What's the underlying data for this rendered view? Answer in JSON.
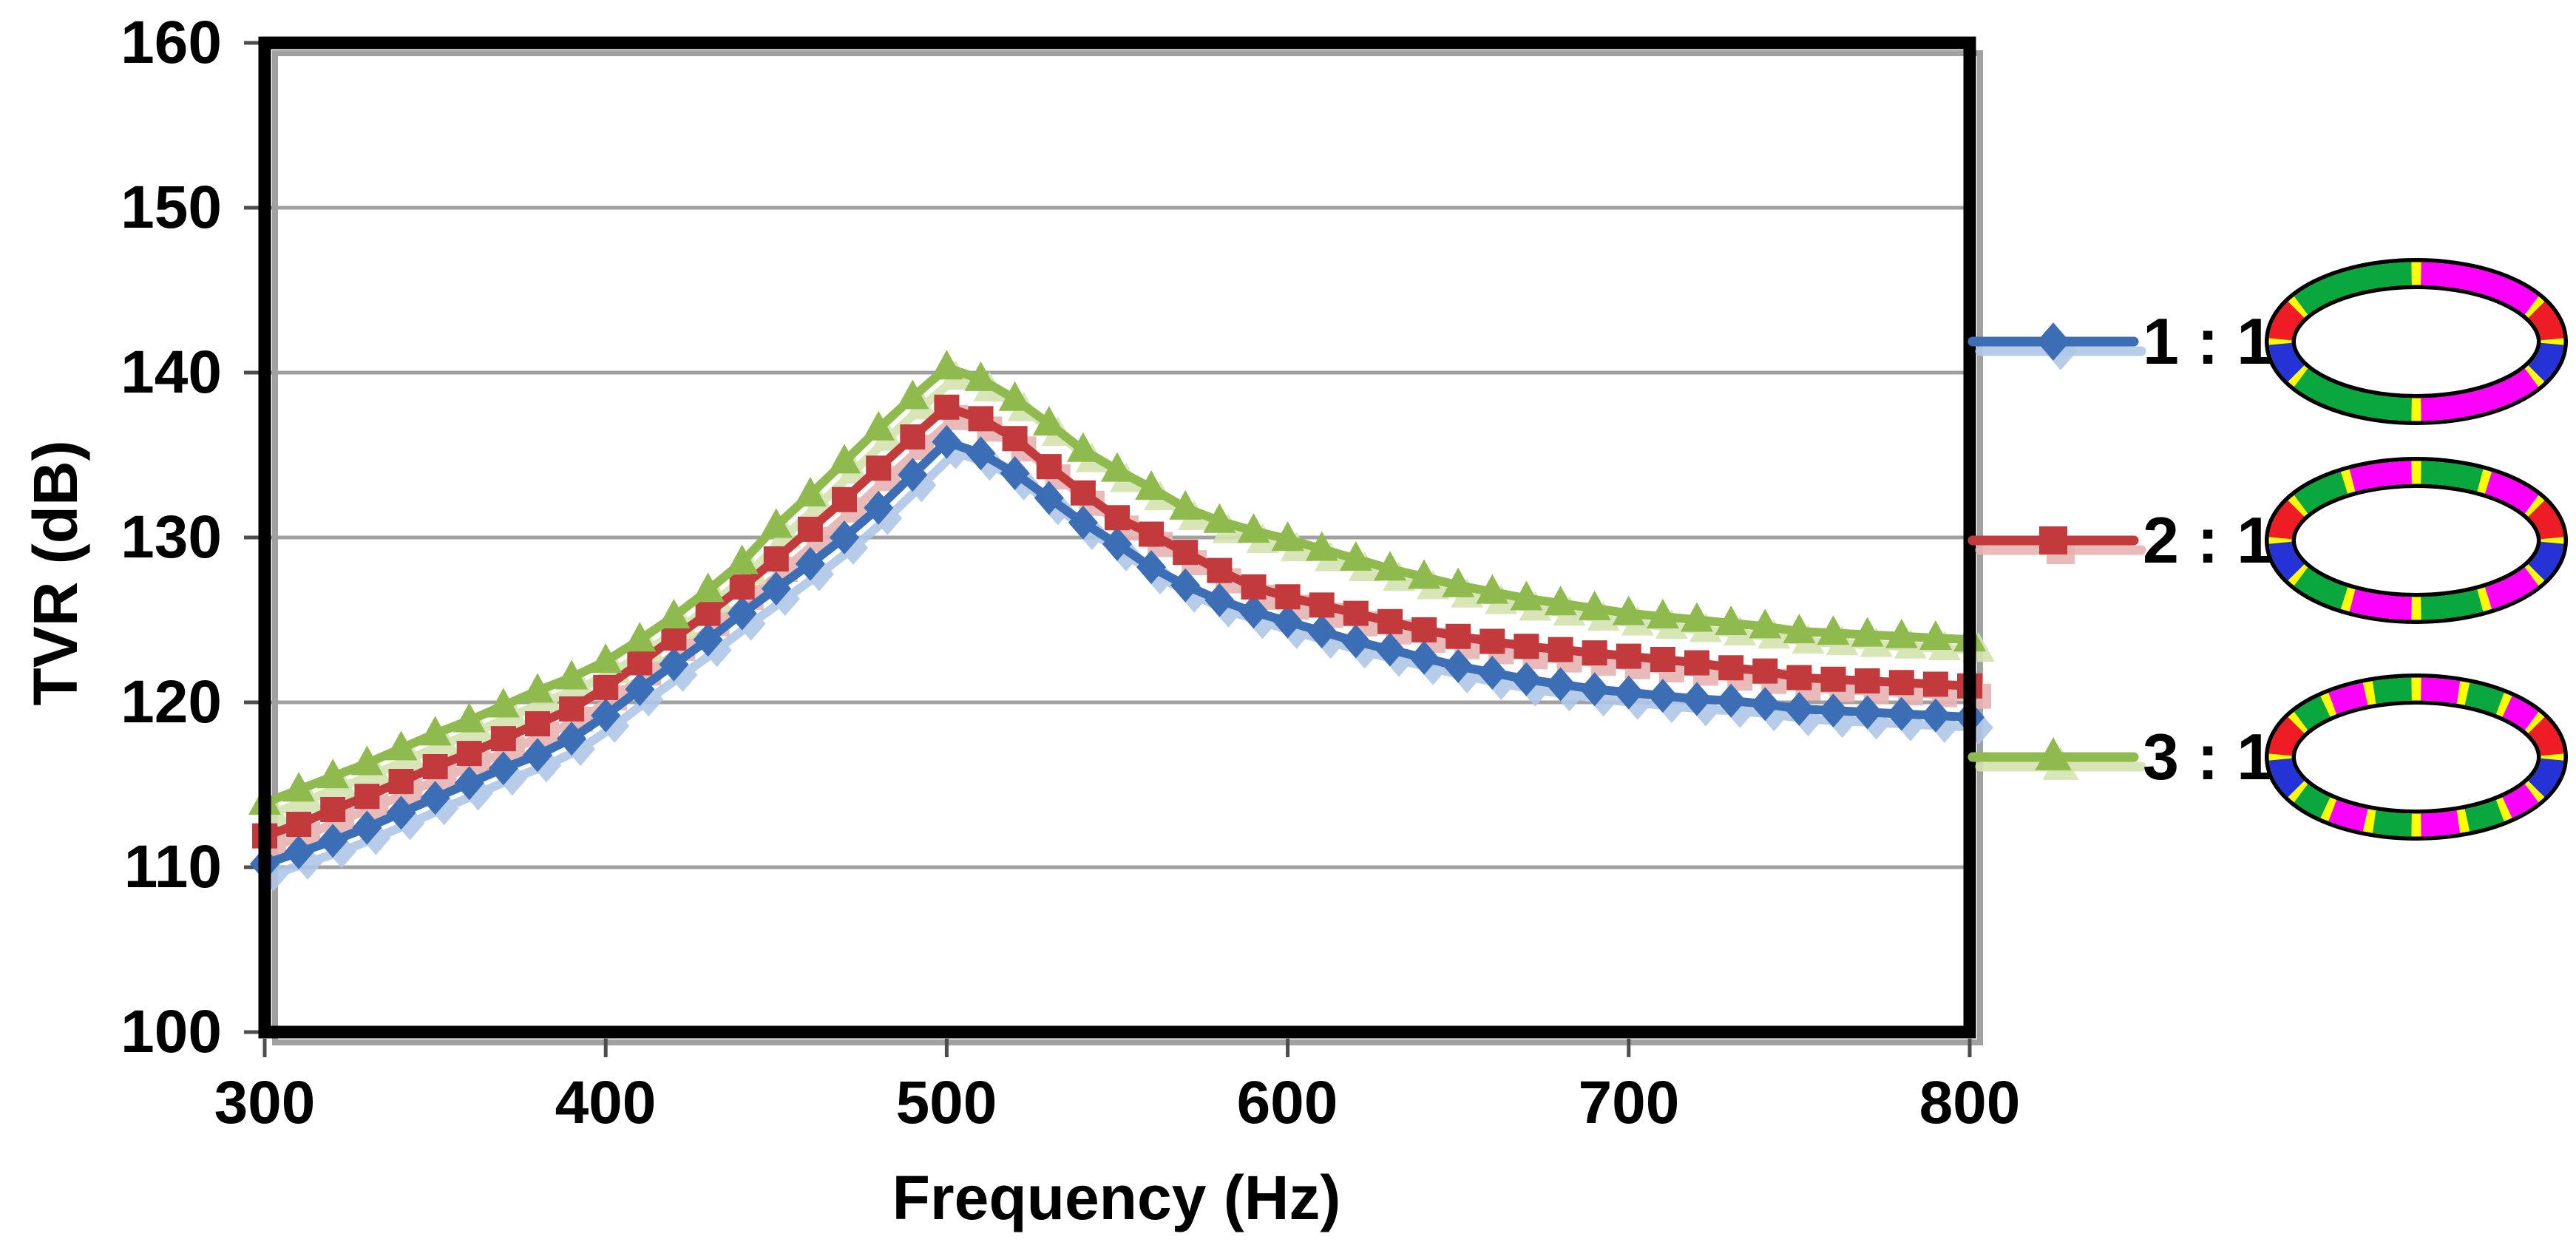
{
  "chart_data": {
    "type": "line",
    "title": "",
    "xlabel": "Frequency (Hz)",
    "ylabel": "TVR (dB)",
    "xlim": [
      300,
      800
    ],
    "ylim": [
      100,
      160
    ],
    "x_ticks": [
      300,
      400,
      500,
      600,
      700,
      800
    ],
    "x_tick_labels": [
      "300",
      "400",
      "500",
      "600",
      "700",
      "800"
    ],
    "y_ticks": [
      160,
      150,
      140,
      130,
      120,
      110,
      100
    ],
    "y_tick_labels": [
      "160",
      "150",
      "140",
      "130",
      "120",
      "110",
      "100"
    ],
    "grid": "horizontal gridlines every 10 dB",
    "legend_position": "right",
    "x": [
      300,
      310,
      320,
      330,
      340,
      350,
      360,
      370,
      380,
      390,
      400,
      410,
      420,
      430,
      440,
      450,
      460,
      470,
      480,
      490,
      500,
      510,
      520,
      530,
      540,
      550,
      560,
      570,
      580,
      590,
      600,
      610,
      620,
      630,
      640,
      650,
      660,
      670,
      680,
      690,
      700,
      710,
      720,
      730,
      740,
      750,
      760,
      770,
      780,
      790,
      800
    ],
    "series": [
      {
        "name": "1 : 1",
        "marker": "diamond",
        "color": "#3C6EB5",
        "shadow_color": "#AFC7E6",
        "values": [
          110.2,
          110.9,
          111.6,
          112.4,
          113.3,
          114.2,
          115.1,
          116.0,
          116.8,
          117.8,
          119.2,
          120.8,
          122.3,
          123.8,
          125.4,
          126.9,
          128.4,
          130.0,
          131.8,
          133.8,
          135.8,
          135.1,
          133.9,
          132.4,
          130.9,
          129.6,
          128.2,
          127.1,
          126.2,
          125.5,
          124.9,
          124.3,
          123.7,
          123.2,
          122.7,
          122.2,
          121.8,
          121.4,
          121.1,
          120.8,
          120.6,
          120.4,
          120.2,
          120.1,
          119.9,
          119.6,
          119.5,
          119.4,
          119.3,
          119.2,
          119.1
        ]
      },
      {
        "name": "2 : 1",
        "marker": "square",
        "color": "#C23A3C",
        "shadow_color": "#E6B3B3",
        "values": [
          111.9,
          112.6,
          113.5,
          114.3,
          115.2,
          116.1,
          116.9,
          117.8,
          118.7,
          119.6,
          120.9,
          122.4,
          123.9,
          125.4,
          127.0,
          128.7,
          130.5,
          132.3,
          134.2,
          136.1,
          137.9,
          137.2,
          136.0,
          134.3,
          132.7,
          131.2,
          130.2,
          129.1,
          128.0,
          127.0,
          126.4,
          125.9,
          125.4,
          124.9,
          124.4,
          124.0,
          123.7,
          123.4,
          123.2,
          123.0,
          122.8,
          122.6,
          122.4,
          122.1,
          121.9,
          121.5,
          121.4,
          121.3,
          121.2,
          121.1,
          121.0
        ]
      },
      {
        "name": "3 : 1",
        "marker": "triangle",
        "color": "#8FBA4D",
        "shadow_color": "#D4E4B0",
        "values": [
          113.9,
          114.7,
          115.5,
          116.3,
          117.2,
          118.1,
          118.9,
          119.8,
          120.7,
          121.5,
          122.5,
          123.8,
          125.2,
          126.8,
          128.5,
          130.7,
          132.6,
          134.6,
          136.6,
          138.5,
          140.3,
          139.6,
          138.4,
          136.9,
          135.3,
          134.1,
          133.0,
          131.8,
          131.0,
          130.4,
          129.9,
          129.3,
          128.7,
          128.1,
          127.6,
          127.1,
          126.7,
          126.3,
          126.0,
          125.7,
          125.4,
          125.2,
          125.0,
          124.8,
          124.6,
          124.3,
          124.2,
          124.1,
          124.0,
          123.9,
          123.8
        ]
      }
    ]
  },
  "legend": {
    "items": [
      {
        "label": "1 : 1",
        "ratio_n": 1,
        "marker": "diamond",
        "color": "#3C6EB5",
        "shadow_color": "#AFC7E6"
      },
      {
        "label": "2 : 1",
        "ratio_n": 2,
        "marker": "square",
        "color": "#C23A3C",
        "shadow_color": "#E6B3B3"
      },
      {
        "label": "3 : 1",
        "ratio_n": 3,
        "marker": "triangle",
        "color": "#8FBA4D",
        "shadow_color": "#D4E4B0"
      }
    ],
    "ellipse_icon": {
      "ring_color": "#FFFF00",
      "outline_color": "#000000",
      "arc_color_a": "#0AA63E",
      "arc_color_b": "#FF00FF",
      "tip_top_color": "#EE1C25",
      "tip_bottom_color": "#2533D6",
      "description": "elliptical ring electrode pattern: n green/magenta pairs per top and bottom arc, red over blue segments at left and right tips"
    }
  },
  "axes_style": {
    "grid_color": "#A0A0A0",
    "tick_color": "#4D4D4D",
    "border_color": "#000000",
    "border_shadow_color": "#909090",
    "background": "#FFFFFF"
  }
}
